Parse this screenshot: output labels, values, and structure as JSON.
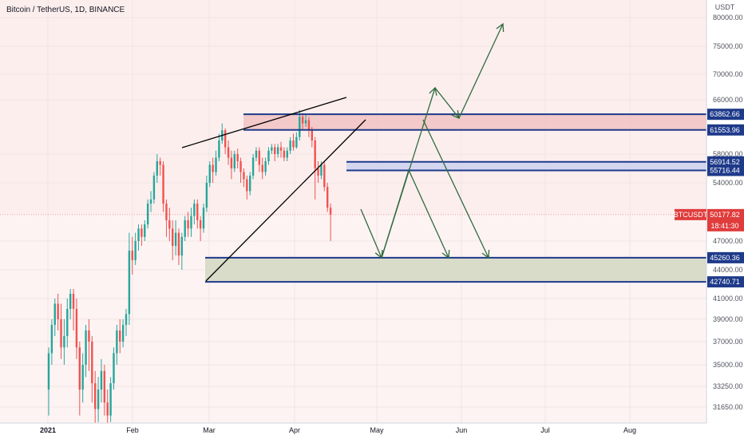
{
  "title": "Bitcoin / TetherUS, 1D, BINANCE",
  "chart_data": {
    "type": "candlestick",
    "currency_label": "USDT",
    "price_ticks": [
      "80000.00",
      "75000.00",
      "70000.00",
      "66000.00",
      "58000.00",
      "54000.00",
      "47000.00",
      "44000.00",
      "41000.00",
      "39000.00",
      "37000.00",
      "35000.00",
      "33250.00",
      "31650.00"
    ],
    "price_tick_values": [
      80000,
      75000,
      70000,
      66000,
      58000,
      54000,
      47000,
      44000,
      41000,
      39000,
      37000,
      35000,
      33250,
      31650
    ],
    "time_ticks": [
      "2021",
      "Feb",
      "Mar",
      "Apr",
      "May",
      "Jun",
      "Jul",
      "Aug"
    ],
    "levels": [
      {
        "label": "63862.66",
        "value": 63862.66
      },
      {
        "label": "61553.96",
        "value": 61553.96
      },
      {
        "label": "56914.52",
        "value": 56914.52
      },
      {
        "label": "55716.44",
        "value": 55716.44
      },
      {
        "label": "45260.36",
        "value": 45260.36
      },
      {
        "label": "42740.71",
        "value": 42740.71
      }
    ],
    "current": {
      "symbol": "BTCUSDT",
      "price": "50177.82",
      "value": 50177.82,
      "countdown": "18:41:30"
    },
    "zones": [
      {
        "top": 63862.66,
        "bottom": 61553.96,
        "fill": "#f2c4c4"
      },
      {
        "top": 56914.52,
        "bottom": 55716.44,
        "fill": "#cfd3ef"
      },
      {
        "top": 45260.36,
        "bottom": 42740.71,
        "fill": "#d4d9c4"
      }
    ],
    "colors": {
      "up": "#26a69a",
      "down": "#ef5350",
      "level": "#1e3a8a",
      "arrow": "#2e6b3e",
      "background_shade": "#fdeeee"
    }
  }
}
